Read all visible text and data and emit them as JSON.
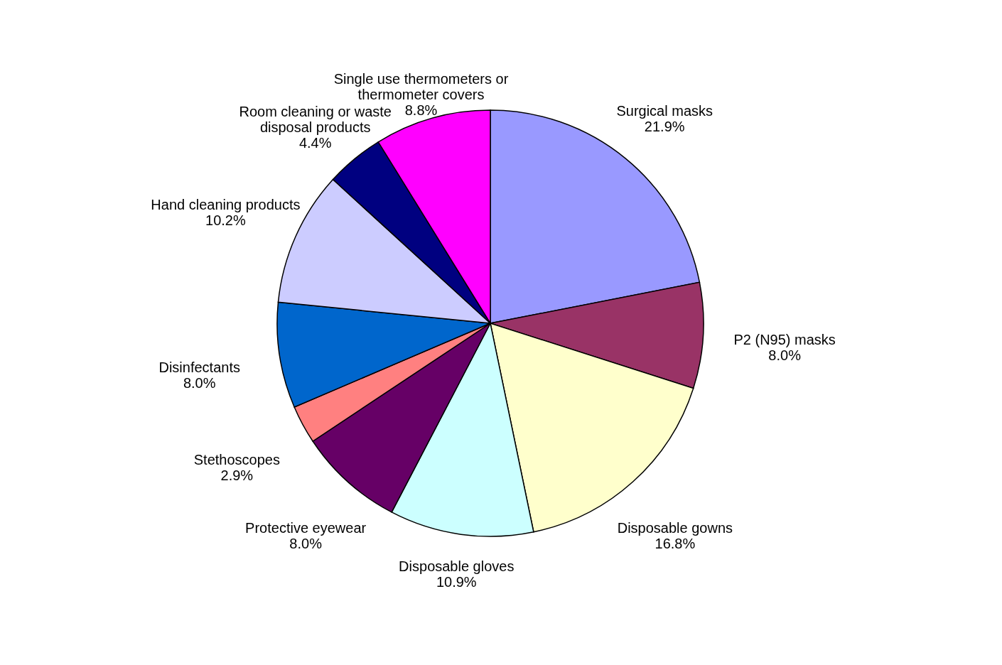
{
  "chart_data": {
    "type": "pie",
    "categories": [
      "Surgical masks",
      "P2 (N95) masks",
      "Disposable gowns",
      "Disposable gloves",
      "Protective eyewear",
      "Stethoscopes",
      "Disinfectants",
      "Hand cleaning products",
      "Room cleaning or waste disposal products",
      "Single use thermometers or thermometer covers"
    ],
    "values": [
      21.9,
      8.0,
      16.8,
      10.9,
      8.0,
      2.9,
      8.0,
      10.2,
      4.4,
      8.8
    ],
    "colors": [
      "#9999ff",
      "#993366",
      "#ffffcc",
      "#ccffff",
      "#660066",
      "#ff8080",
      "#0066cc",
      "#ccccff",
      "#000080",
      "#ff00ff"
    ],
    "value_labels": [
      "21.9%",
      "8.0%",
      "16.8%",
      "10.9%",
      "8.0%",
      "2.9%",
      "8.0%",
      "10.2%",
      "4.4%",
      "8.8%"
    ],
    "legend": false
  }
}
